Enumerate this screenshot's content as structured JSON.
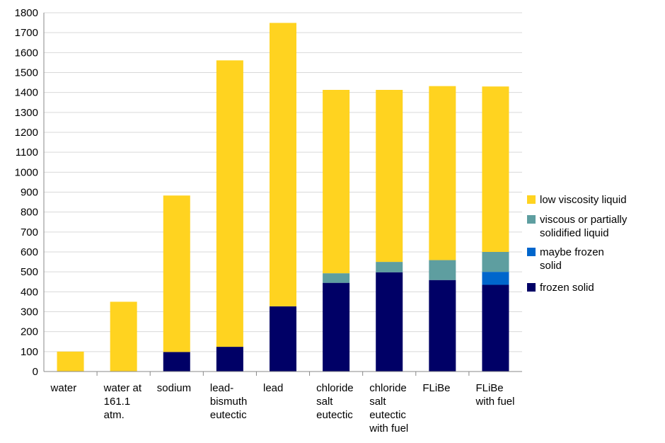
{
  "chart_data": {
    "type": "bar",
    "stacked": true,
    "title": "",
    "xlabel": "",
    "ylabel": "",
    "ylim": [
      0,
      1800
    ],
    "ytick_step": 100,
    "grid": true,
    "legend_position": "right",
    "categories": [
      [
        "water"
      ],
      [
        "water at",
        "161.1",
        "atm."
      ],
      [
        "sodium"
      ],
      [
        "lead-",
        "bismuth",
        "eutectic"
      ],
      [
        "lead"
      ],
      [
        "chloride",
        "salt",
        "eutectic"
      ],
      [
        "chloride",
        "salt",
        "eutectic",
        "with fuel"
      ],
      [
        "FLiBe"
      ],
      [
        "FLiBe",
        "with fuel"
      ]
    ],
    "series": [
      {
        "name": "frozen solid",
        "color": "#000066",
        "values": [
          0,
          0,
          98,
          124,
          327,
          445,
          498,
          459,
          435
        ]
      },
      {
        "name": "maybe frozen solid",
        "color": "#0066cc",
        "values": [
          0,
          0,
          0,
          0,
          0,
          0,
          0,
          0,
          65
        ]
      },
      {
        "name": "viscous or partially solidified liquid",
        "color": "#5e9ea0",
        "values": [
          0,
          0,
          0,
          0,
          0,
          48,
          52,
          100,
          100
        ]
      },
      {
        "name": "low viscosity liquid",
        "color": "#ffd320",
        "values": [
          100,
          350,
          785,
          1437,
          1422,
          920,
          863,
          873,
          830
        ]
      }
    ],
    "legend": [
      {
        "color": "#ffd320",
        "lines": [
          "low viscosity liquid"
        ]
      },
      {
        "color": "#5e9ea0",
        "lines": [
          "viscous or partially",
          "solidified liquid"
        ]
      },
      {
        "color": "#0066cc",
        "lines": [
          "maybe frozen",
          "solid"
        ]
      },
      {
        "color": "#000066",
        "lines": [
          "frozen solid"
        ]
      }
    ]
  }
}
